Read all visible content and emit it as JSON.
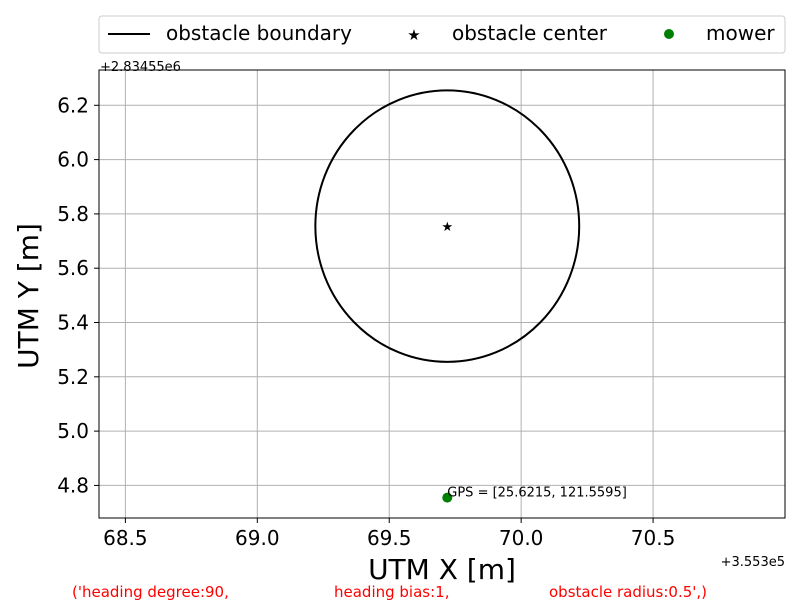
{
  "chart_data": {
    "type": "scatter",
    "xlabel": "UTM X [m]",
    "ylabel": "UTM Y [m]",
    "x_offset_label": "+3.553e5",
    "y_offset_label": "+2.83455e6",
    "xlim": [
      68.4,
      71.0
    ],
    "ylim": [
      4.68,
      6.33
    ],
    "x_ticks": [
      68.5,
      69.0,
      69.5,
      70.0,
      70.5
    ],
    "x_tick_labels": [
      "68.5",
      "69.0",
      "69.5",
      "70.0",
      "70.5"
    ],
    "y_ticks": [
      4.8,
      5.0,
      5.2,
      5.4,
      5.6,
      5.8,
      6.0,
      6.2
    ],
    "y_tick_labels": [
      "4.8",
      "5.0",
      "5.2",
      "5.4",
      "5.6",
      "5.8",
      "6.0",
      "6.2"
    ],
    "grid": true,
    "legend_position": "top",
    "legend": [
      {
        "label": "obstacle boundary",
        "marker": "line",
        "color": "#000000"
      },
      {
        "label": "obstacle center",
        "marker": "star",
        "color": "#000000"
      },
      {
        "label": "mower",
        "marker": "dot",
        "color": "#008000"
      }
    ],
    "obstacle": {
      "center": [
        69.72,
        5.755
      ],
      "radius": 0.5
    },
    "mower": {
      "x": 69.72,
      "y": 4.755
    },
    "annotation": "GPS = [25.6215, 121.5595]",
    "footer": {
      "part1": "('heading  degree:90,",
      "part2": "heading  bias:1,",
      "part3": "obstacle  radius:0.5',)"
    }
  }
}
